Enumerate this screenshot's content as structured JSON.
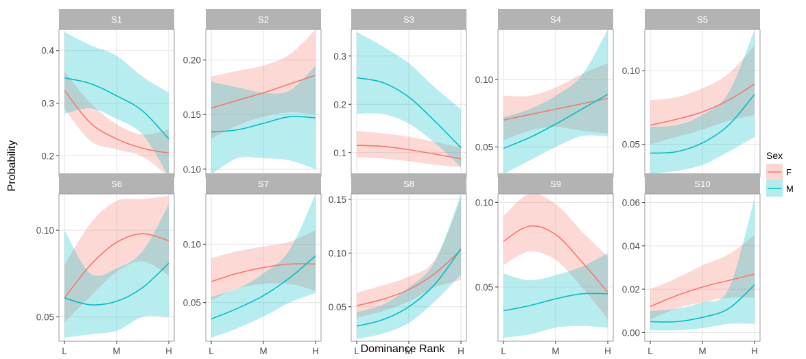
{
  "chart_data": {
    "type": "line",
    "xlabel": "Dominance Rank",
    "ylabel": "Probability",
    "x_categories": [
      "L",
      "M",
      "H"
    ],
    "legend": {
      "title": "Sex",
      "placement": "right",
      "entries": [
        {
          "name": "F",
          "line_color": "#F8766D",
          "fill_color": "#F8766D"
        },
        {
          "name": "M",
          "line_color": "#00BFC4",
          "fill_color": "#00BFC4"
        }
      ]
    },
    "colors": {
      "strip_background": "#b3b3b3",
      "strip_text": "#ffffff",
      "panel_border": "#999999",
      "grid": "#e3e3e3"
    },
    "x": [
      0,
      0.25,
      0.5,
      0.75,
      1
    ],
    "panels": [
      {
        "title": "S1",
        "ylim": [
          0.16,
          0.44
        ],
        "yticks": [
          0.2,
          0.3,
          0.4
        ],
        "ytick_labels": [
          "0.2",
          "0.3",
          "0.4"
        ],
        "series": [
          {
            "name": "F",
            "values": [
              0.324,
              0.262,
              0.232,
              0.214,
              0.205
            ],
            "lower": [
              0.29,
              0.228,
              0.212,
              0.198,
              0.16
            ],
            "upper": [
              0.36,
              0.3,
              0.26,
              0.24,
              0.25
            ]
          },
          {
            "name": "M",
            "values": [
              0.348,
              0.337,
              0.314,
              0.285,
              0.232
            ],
            "lower": [
              0.28,
              0.29,
              0.27,
              0.24,
              0.16
            ],
            "upper": [
              0.435,
              0.41,
              0.39,
              0.35,
              0.32
            ]
          }
        ]
      },
      {
        "title": "S2",
        "ylim": [
          0.093,
          0.228
        ],
        "yticks": [
          0.1,
          0.15,
          0.2
        ],
        "ytick_labels": [
          "0.10",
          "0.15",
          "0.20"
        ],
        "series": [
          {
            "name": "F",
            "values": [
              0.156,
              0.163,
              0.17,
              0.178,
              0.186
            ],
            "lower": [
              0.128,
              0.14,
              0.148,
              0.152,
              0.15
            ],
            "upper": [
              0.185,
              0.19,
              0.195,
              0.205,
              0.228
            ]
          },
          {
            "name": "M",
            "values": [
              0.134,
              0.136,
              0.142,
              0.148,
              0.147
            ],
            "lower": [
              0.095,
              0.11,
              0.11,
              0.108,
              0.1
            ],
            "upper": [
              0.18,
              0.175,
              0.17,
              0.172,
              0.195
            ]
          }
        ]
      },
      {
        "title": "S3",
        "ylim": [
          0.05,
          0.355
        ],
        "yticks": [
          0.1,
          0.2,
          0.3
        ],
        "ytick_labels": [
          "0.1",
          "0.2",
          "0.3"
        ],
        "series": [
          {
            "name": "F",
            "values": [
              0.115,
              0.113,
              0.106,
              0.097,
              0.087
            ],
            "lower": [
              0.09,
              0.088,
              0.082,
              0.075,
              0.07
            ],
            "upper": [
              0.145,
              0.14,
              0.133,
              0.122,
              0.11
            ]
          },
          {
            "name": "M",
            "values": [
              0.255,
              0.245,
              0.215,
              0.165,
              0.11
            ],
            "lower": [
              0.18,
              0.18,
              0.16,
              0.12,
              0.07
            ],
            "upper": [
              0.35,
              0.32,
              0.285,
              0.235,
              0.19
            ]
          }
        ]
      },
      {
        "title": "S4",
        "ylim": [
          0.028,
          0.137
        ],
        "yticks": [
          0.05,
          0.1
        ],
        "ytick_labels": [
          "0.05",
          "0.10"
        ],
        "series": [
          {
            "name": "F",
            "values": [
              0.07,
              0.074,
              0.078,
              0.082,
              0.086
            ],
            "lower": [
              0.055,
              0.062,
              0.065,
              0.062,
              0.06
            ],
            "upper": [
              0.088,
              0.088,
              0.094,
              0.104,
              0.112
            ]
          },
          {
            "name": "M",
            "values": [
              0.049,
              0.057,
              0.067,
              0.078,
              0.089
            ],
            "lower": [
              0.03,
              0.04,
              0.05,
              0.058,
              0.058
            ],
            "upper": [
              0.072,
              0.078,
              0.088,
              0.103,
              0.137
            ]
          }
        ]
      },
      {
        "title": "S5",
        "ylim": [
          0.028,
          0.128
        ],
        "yticks": [
          0.05,
          0.1
        ],
        "ytick_labels": [
          "0.05",
          "0.10"
        ],
        "series": [
          {
            "name": "F",
            "values": [
              0.063,
              0.067,
              0.072,
              0.08,
              0.091
            ],
            "lower": [
              0.05,
              0.055,
              0.06,
              0.066,
              0.07
            ],
            "upper": [
              0.08,
              0.082,
              0.088,
              0.098,
              0.117
            ]
          },
          {
            "name": "M",
            "values": [
              0.044,
              0.045,
              0.051,
              0.063,
              0.084
            ],
            "lower": [
              0.03,
              0.032,
              0.036,
              0.045,
              0.055
            ],
            "upper": [
              0.062,
              0.063,
              0.07,
              0.085,
              0.128
            ]
          }
        ]
      },
      {
        "title": "S6",
        "ylim": [
          0.036,
          0.121
        ],
        "yticks": [
          0.05,
          0.1
        ],
        "ytick_labels": [
          "0.05",
          "0.10"
        ],
        "series": [
          {
            "name": "F",
            "values": [
              0.061,
              0.08,
              0.093,
              0.098,
              0.094
            ],
            "lower": [
              0.047,
              0.062,
              0.076,
              0.082,
              0.074
            ],
            "upper": [
              0.08,
              0.104,
              0.117,
              0.118,
              0.12
            ]
          },
          {
            "name": "M",
            "values": [
              0.061,
              0.057,
              0.059,
              0.067,
              0.081
            ],
            "lower": [
              0.038,
              0.04,
              0.042,
              0.05,
              0.05
            ],
            "upper": [
              0.1,
              0.075,
              0.078,
              0.088,
              0.115
            ]
          }
        ]
      },
      {
        "title": "S7",
        "ylim": [
          0.017,
          0.143
        ],
        "yticks": [
          0.05,
          0.1
        ],
        "ytick_labels": [
          "0.05",
          "0.10"
        ],
        "series": [
          {
            "name": "F",
            "values": [
              0.068,
              0.075,
              0.08,
              0.083,
              0.083
            ],
            "lower": [
              0.052,
              0.062,
              0.066,
              0.066,
              0.06
            ],
            "upper": [
              0.088,
              0.094,
              0.098,
              0.102,
              0.112
            ]
          },
          {
            "name": "M",
            "values": [
              0.036,
              0.045,
              0.056,
              0.071,
              0.09
            ],
            "lower": [
              0.02,
              0.028,
              0.038,
              0.05,
              0.058
            ],
            "upper": [
              0.055,
              0.062,
              0.075,
              0.095,
              0.143
            ]
          }
        ]
      },
      {
        "title": "S8",
        "ylim": [
          0.018,
          0.155
        ],
        "yticks": [
          0.05,
          0.1,
          0.15
        ],
        "ytick_labels": [
          "0.05",
          "0.10",
          "0.15"
        ],
        "series": [
          {
            "name": "F",
            "values": [
              0.051,
              0.057,
              0.066,
              0.081,
              0.103
            ],
            "lower": [
              0.04,
              0.046,
              0.055,
              0.068,
              0.075
            ],
            "upper": [
              0.063,
              0.07,
              0.078,
              0.094,
              0.15
            ]
          },
          {
            "name": "M",
            "values": [
              0.032,
              0.038,
              0.05,
              0.071,
              0.104
            ],
            "lower": [
              0.02,
              0.025,
              0.035,
              0.055,
              0.08
            ],
            "upper": [
              0.045,
              0.052,
              0.068,
              0.092,
              0.155
            ]
          }
        ]
      },
      {
        "title": "S9",
        "ylim": [
          0.018,
          0.105
        ],
        "yticks": [
          0.05,
          0.1
        ],
        "ytick_labels": [
          "0.05",
          "0.10"
        ],
        "series": [
          {
            "name": "F",
            "values": [
              0.077,
              0.086,
              0.081,
              0.065,
              0.047
            ],
            "lower": [
              0.063,
              0.071,
              0.066,
              0.05,
              0.031
            ],
            "upper": [
              0.092,
              0.105,
              0.099,
              0.083,
              0.068
            ]
          },
          {
            "name": "M",
            "values": [
              0.036,
              0.039,
              0.043,
              0.046,
              0.046
            ],
            "lower": [
              0.02,
              0.022,
              0.026,
              0.027,
              0.026
            ],
            "upper": [
              0.058,
              0.054,
              0.057,
              0.062,
              0.07
            ]
          }
        ]
      },
      {
        "title": "S10",
        "ylim": [
          -0.004,
          0.064
        ],
        "yticks": [
          0.0,
          0.02,
          0.04,
          0.06
        ],
        "ytick_labels": [
          "0.00",
          "0.02",
          "0.04",
          "0.06"
        ],
        "series": [
          {
            "name": "F",
            "values": [
              0.012,
              0.017,
              0.021,
              0.024,
              0.027
            ],
            "lower": [
              0.006,
              0.011,
              0.014,
              0.016,
              0.016
            ],
            "upper": [
              0.02,
              0.025,
              0.031,
              0.036,
              0.045
            ]
          },
          {
            "name": "M",
            "values": [
              0.005,
              0.005,
              0.007,
              0.011,
              0.022
            ],
            "lower": [
              0.001,
              0.001,
              0.002,
              0.004,
              0.004
            ],
            "upper": [
              0.01,
              0.011,
              0.014,
              0.02,
              0.062
            ]
          }
        ]
      }
    ]
  }
}
